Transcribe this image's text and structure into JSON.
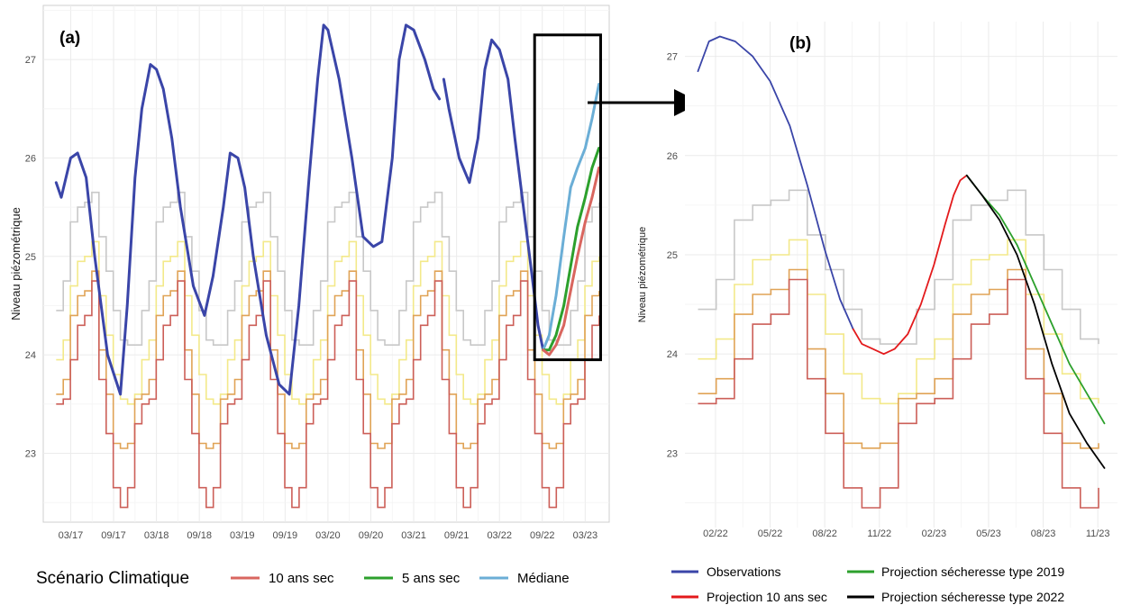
{
  "chart_data": [
    {
      "id": "panel-a",
      "type": "line",
      "panel_label": "(a)",
      "ylabel": "Niveau piézométrique",
      "xlabel": "",
      "xlim": [
        2016.85,
        2023.45
      ],
      "ylim": [
        22.3,
        27.55
      ],
      "x_tick_values": [
        2017.17,
        2017.67,
        2018.17,
        2018.67,
        2019.17,
        2019.67,
        2020.17,
        2020.67,
        2021.17,
        2021.67,
        2022.17,
        2022.67,
        2023.17
      ],
      "x_tick_labels": [
        "03/17",
        "09/17",
        "03/18",
        "09/18",
        "03/19",
        "09/19",
        "03/20",
        "09/20",
        "03/21",
        "09/21",
        "03/22",
        "09/22",
        "03/23"
      ],
      "y_ticks": [
        23,
        24,
        25,
        26,
        27
      ],
      "grid": true,
      "legend": {
        "title": "Scénario Climatique",
        "position": "bottom",
        "entries": [
          {
            "label": "10 ans sec",
            "color": "#d9665f"
          },
          {
            "label": "5 ans sec",
            "color": "#2ca02c"
          },
          {
            "label": "Médiane",
            "color": "#6baed6"
          }
        ]
      },
      "series": [
        {
          "role": "observed",
          "color": "#3a45a8",
          "x": [
            2017.0,
            2017.06,
            2017.17,
            2017.25,
            2017.35,
            2017.45,
            2017.6,
            2017.75,
            2017.83,
            2017.92,
            2018.0,
            2018.1,
            2018.17,
            2018.25,
            2018.35,
            2018.45,
            2018.6,
            2018.73,
            2018.83,
            2018.95,
            2019.03,
            2019.12,
            2019.2,
            2019.3,
            2019.45,
            2019.6,
            2019.72,
            2019.83,
            2019.95,
            2020.05,
            2020.12,
            2020.17,
            2020.3,
            2020.45,
            2020.58,
            2020.7,
            2020.8,
            2020.92,
            2021.0,
            2021.08,
            2021.17,
            2021.3,
            2021.4,
            2021.47
          ],
          "y": [
            25.75,
            25.6,
            26.0,
            26.05,
            25.8,
            25.0,
            24.0,
            23.6,
            24.5,
            25.8,
            26.5,
            26.95,
            26.9,
            26.7,
            26.2,
            25.5,
            24.7,
            24.4,
            24.8,
            25.5,
            26.05,
            26.0,
            25.7,
            25.0,
            24.2,
            23.7,
            23.6,
            24.5,
            25.8,
            26.8,
            27.35,
            27.3,
            26.8,
            26.0,
            25.2,
            25.1,
            25.15,
            26.0,
            27.0,
            27.35,
            27.3,
            27.0,
            26.7,
            26.6
          ]
        },
        {
          "role": "observed",
          "color": "#3a45a8",
          "x": [
            2021.52,
            2021.58,
            2021.7,
            2021.82,
            2021.92,
            2022.0,
            2022.08,
            2022.17,
            2022.27,
            2022.35,
            2022.45,
            2022.55,
            2022.62,
            2022.68
          ],
          "y": [
            26.8,
            26.5,
            26.0,
            25.75,
            26.2,
            26.9,
            27.2,
            27.1,
            26.8,
            26.2,
            25.5,
            24.8,
            24.3,
            24.05
          ]
        },
        {
          "name": "Médiane",
          "color": "#6baed6",
          "x": [
            2022.68,
            2022.75,
            2022.83,
            2022.92,
            2023.0,
            2023.08,
            2023.17,
            2023.25,
            2023.33
          ],
          "y": [
            24.05,
            24.2,
            24.6,
            25.2,
            25.7,
            25.9,
            26.1,
            26.4,
            26.75
          ]
        },
        {
          "name": "5 ans sec",
          "color": "#2ca02c",
          "x": [
            2022.68,
            2022.75,
            2022.83,
            2022.92,
            2023.0,
            2023.08,
            2023.17,
            2023.25,
            2023.33
          ],
          "y": [
            24.05,
            24.05,
            24.2,
            24.5,
            24.9,
            25.3,
            25.6,
            25.9,
            26.1
          ]
        },
        {
          "name": "10 ans sec",
          "color": "#d9665f",
          "x": [
            2022.68,
            2022.75,
            2022.83,
            2022.92,
            2023.0,
            2023.08,
            2023.17,
            2023.25,
            2023.33
          ],
          "y": [
            24.05,
            24.0,
            24.1,
            24.3,
            24.65,
            25.0,
            25.35,
            25.6,
            25.9
          ]
        }
      ],
      "callout": {
        "x": [
          2022.58,
          2023.35
        ],
        "y": [
          23.95,
          27.25
        ]
      }
    },
    {
      "id": "panel-b",
      "type": "line",
      "panel_label": "(b)",
      "ylabel": "Niveau piézométrique",
      "xlabel": "",
      "xlim": [
        2021.94,
        2023.92
      ],
      "ylim": [
        22.25,
        27.35
      ],
      "x_tick_values": [
        2022.08,
        2022.33,
        2022.58,
        2022.83,
        2023.08,
        2023.33,
        2023.58,
        2023.83
      ],
      "x_tick_labels": [
        "02/22",
        "05/22",
        "08/22",
        "11/22",
        "02/23",
        "05/23",
        "08/23",
        "11/23"
      ],
      "y_ticks": [
        23,
        24,
        25,
        26,
        27
      ],
      "grid": true,
      "legend": {
        "position": "bottom",
        "entries": [
          {
            "label": "Observations",
            "color": "#3a45a8"
          },
          {
            "label": "Projection 10 ans sec",
            "color": "#e31a1c"
          },
          {
            "label": "Projection sécheresse type 2019",
            "color": "#2ca02c"
          },
          {
            "label": "Projection sécheresse type 2022",
            "color": "#000000"
          }
        ]
      },
      "series": [
        {
          "name": "Observations",
          "color": "#3a45a8",
          "x": [
            2022.0,
            2022.05,
            2022.1,
            2022.17,
            2022.25,
            2022.33,
            2022.42,
            2022.5,
            2022.58,
            2022.65,
            2022.71
          ],
          "y": [
            26.85,
            27.15,
            27.2,
            27.15,
            27.0,
            26.75,
            26.3,
            25.7,
            25.05,
            24.55,
            24.25
          ]
        },
        {
          "name": "Projection 10 ans sec",
          "color": "#e31a1c",
          "x": [
            2022.71,
            2022.75,
            2022.8,
            2022.85,
            2022.9,
            2022.96,
            2023.02,
            2023.08,
            2023.13,
            2023.17,
            2023.2,
            2023.23
          ],
          "y": [
            24.25,
            24.1,
            24.05,
            24.0,
            24.05,
            24.2,
            24.5,
            24.9,
            25.3,
            25.6,
            25.75,
            25.8
          ]
        },
        {
          "name": "Projection sécheresse type 2019",
          "color": "#2ca02c",
          "x": [
            2023.23,
            2023.3,
            2023.38,
            2023.46,
            2023.54,
            2023.62,
            2023.7,
            2023.78,
            2023.86
          ],
          "y": [
            25.8,
            25.6,
            25.4,
            25.1,
            24.7,
            24.3,
            23.9,
            23.6,
            23.3
          ]
        },
        {
          "name": "Projection sécheresse type 2022",
          "color": "#000000",
          "x": [
            2023.23,
            2023.3,
            2023.38,
            2023.46,
            2023.54,
            2023.62,
            2023.7,
            2023.78,
            2023.86
          ],
          "y": [
            25.8,
            25.6,
            25.35,
            25.0,
            24.5,
            23.9,
            23.4,
            23.1,
            22.85
          ]
        }
      ]
    }
  ]
}
